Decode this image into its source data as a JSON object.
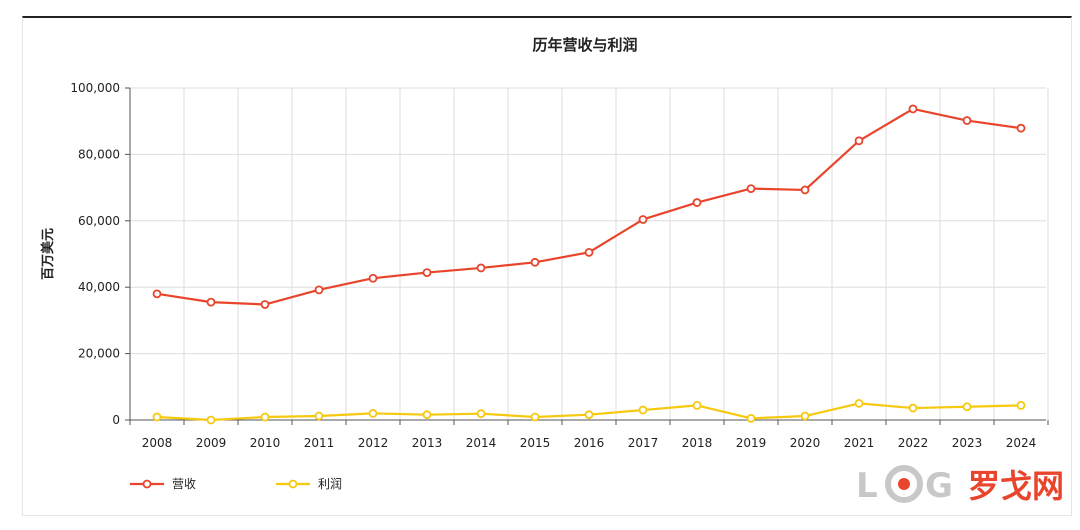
{
  "chart_data": {
    "type": "line",
    "title": "历年营收与利润",
    "ylabel": "百万美元",
    "xlabel": "",
    "ylim": [
      0,
      100000
    ],
    "yticks": [
      "0",
      "20,000",
      "40,000",
      "60,000",
      "80,000",
      "100,000"
    ],
    "ytick_values": [
      0,
      20000,
      40000,
      60000,
      80000,
      100000
    ],
    "categories": [
      "2008",
      "2009",
      "2010",
      "2011",
      "2012",
      "2013",
      "2014",
      "2015",
      "2016",
      "2017",
      "2018",
      "2019",
      "2020",
      "2021",
      "2022",
      "2023",
      "2024"
    ],
    "grid": true,
    "legend_position": "bottom-left",
    "series": [
      {
        "name": "营收",
        "color": "#e8452c",
        "values": [
          38000,
          35500,
          34800,
          39200,
          42700,
          44400,
          45800,
          47500,
          50500,
          60400,
          65500,
          69700,
          69300,
          84100,
          93700,
          90200,
          87900
        ]
      },
      {
        "name": "利润",
        "color": "#f6c90e",
        "values": [
          900,
          0,
          900,
          1200,
          2000,
          1600,
          1900,
          900,
          1600,
          3000,
          4400,
          500,
          1200,
          5000,
          3600,
          4000,
          4400
        ]
      }
    ]
  },
  "watermark": {
    "logo_text": "LOG",
    "text": "罗戈网"
  }
}
